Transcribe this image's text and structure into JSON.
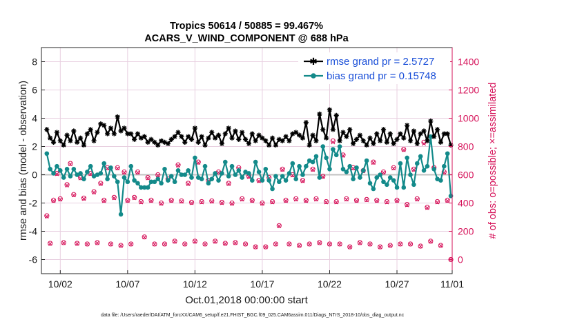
{
  "chart_data": {
    "type": "line",
    "title_line1": "Tropics 50614 / 50885 = 99.467%",
    "title_line2": "ACARS_V_WIND_COMPONENT @ 688 hPa",
    "xlabel": "Oct.01,2018 00:00:00 start",
    "ylabel_left": "rmse and bias (model - observation)",
    "ylabel_right": "# of obs: o=possible; ×=assimilated",
    "footnote": "data file: /Users/raeder/DAI/ATM_forcXX/CAM6_setup/f.e21.FHIST_BGC.f09_025.CAM6assim.011/Diags_NTrS_2018-10/obs_diag_output.nc",
    "xlim": [
      0.6,
      31.1
    ],
    "ylim_left": [
      -7,
      9
    ],
    "ylim_right": [
      -100,
      1500
    ],
    "x_ticks": [
      2,
      7,
      12,
      17,
      22,
      27,
      32
    ],
    "x_tick_labels": [
      "10/02",
      "10/07",
      "10/12",
      "10/17",
      "10/22",
      "10/27",
      "11/01"
    ],
    "y_ticks_left": [
      -6,
      -4,
      -2,
      0,
      2,
      4,
      6,
      8
    ],
    "y_tick_labels_left": [
      "-6",
      "-4",
      "-2",
      "0",
      "2",
      "4",
      "6",
      "8"
    ],
    "y_ticks_right": [
      0,
      200,
      400,
      600,
      800,
      1000,
      1200,
      1400
    ],
    "y_tick_labels_right": [
      "0",
      "200",
      "400",
      "600",
      "800",
      "1000",
      "1200",
      "1400"
    ],
    "legend": [
      {
        "name": "rmse grand pr = 2.5727",
        "color": "#000000"
      },
      {
        "name": "bias grand pr = 0.15748",
        "color": "#138a8a"
      }
    ],
    "colors": {
      "rmse": "#000000",
      "bias": "#138a8a",
      "obs": "#d6135a",
      "zero": "#c0c0c0",
      "grid": "#e8cfe0"
    },
    "series": [
      {
        "name": "rmse",
        "x": [
          1.0,
          1.25,
          1.5,
          1.75,
          2.0,
          2.25,
          2.5,
          2.75,
          3.0,
          3.25,
          3.5,
          3.75,
          4.0,
          4.25,
          4.5,
          4.75,
          5.0,
          5.25,
          5.5,
          5.75,
          6.0,
          6.25,
          6.5,
          6.75,
          7.0,
          7.25,
          7.5,
          7.75,
          8.0,
          8.25,
          8.5,
          8.75,
          9.0,
          9.25,
          9.5,
          9.75,
          10.0,
          10.25,
          10.5,
          10.75,
          11.0,
          11.25,
          11.5,
          11.75,
          12.0,
          12.25,
          12.5,
          12.75,
          13.0,
          13.25,
          13.5,
          13.75,
          14.0,
          14.25,
          14.5,
          14.75,
          15.0,
          15.25,
          15.5,
          15.75,
          16.0,
          16.25,
          16.5,
          16.75,
          17.0,
          17.25,
          17.5,
          17.75,
          18.0,
          18.25,
          18.5,
          18.75,
          19.0,
          19.25,
          19.5,
          19.75,
          20.0,
          20.25,
          20.5,
          20.75,
          21.0,
          21.25,
          21.5,
          21.75,
          22.0,
          22.25,
          22.5,
          22.75,
          23.0,
          23.25,
          23.5,
          23.75,
          24.0,
          24.25,
          24.5,
          24.75,
          25.0,
          25.25,
          25.5,
          25.75,
          26.0,
          26.25,
          26.5,
          26.75,
          27.0,
          27.25,
          27.5,
          27.75,
          28.0,
          28.25,
          28.5,
          28.75,
          29.0,
          29.25,
          29.5,
          29.75,
          30.0,
          30.25,
          30.5,
          30.75,
          31.0
        ],
        "values": [
          3.2,
          2.6,
          2.3,
          3.0,
          2.4,
          2.1,
          2.8,
          2.4,
          3.1,
          2.3,
          2.6,
          2.1,
          2.9,
          3.2,
          2.4,
          3.0,
          3.6,
          3.5,
          2.9,
          3.3,
          2.9,
          4.1,
          3.1,
          3.3,
          2.9,
          2.9,
          2.5,
          2.9,
          2.6,
          2.7,
          2.3,
          2.5,
          2.3,
          2.1,
          2.4,
          2.3,
          2.2,
          2.5,
          2.7,
          3.0,
          2.7,
          2.3,
          2.7,
          2.5,
          3.3,
          2.3,
          2.7,
          2.1,
          2.6,
          3.0,
          2.6,
          2.8,
          2.2,
          2.9,
          3.3,
          2.6,
          3.1,
          2.5,
          3.0,
          2.5,
          2.2,
          2.9,
          2.4,
          2.8,
          2.6,
          2.4,
          2.1,
          2.6,
          2.1,
          2.5,
          2.4,
          2.7,
          2.4,
          2.9,
          3.0,
          2.8,
          2.6,
          3.7,
          2.1,
          2.8,
          2.4,
          4.3,
          3.2,
          2.6,
          4.6,
          3.2,
          4.2,
          2.4,
          3.0,
          2.7,
          3.2,
          2.2,
          2.5,
          2.8,
          2.4,
          2.1,
          2.6,
          2.2,
          2.9,
          2.4,
          3.2,
          2.3,
          2.9,
          2.2,
          2.5,
          2.9,
          2.6,
          3.5,
          2.4,
          3.1,
          2.2,
          2.9,
          3.1,
          2.4,
          3.8,
          2.7,
          3.2,
          2.3,
          2.9,
          2.9,
          2.1
        ]
      },
      {
        "name": "bias",
        "x": [
          1.0,
          1.25,
          1.5,
          1.75,
          2.0,
          2.25,
          2.5,
          2.75,
          3.0,
          3.25,
          3.5,
          3.75,
          4.0,
          4.25,
          4.5,
          4.75,
          5.0,
          5.25,
          5.5,
          5.75,
          6.0,
          6.25,
          6.5,
          6.75,
          7.0,
          7.25,
          7.5,
          7.75,
          8.0,
          8.25,
          8.5,
          8.75,
          9.0,
          9.25,
          9.5,
          9.75,
          10.0,
          10.25,
          10.5,
          10.75,
          11.0,
          11.25,
          11.5,
          11.75,
          12.0,
          12.25,
          12.5,
          12.75,
          13.0,
          13.25,
          13.5,
          13.75,
          14.0,
          14.25,
          14.5,
          14.75,
          15.0,
          15.25,
          15.5,
          15.75,
          16.0,
          16.25,
          16.5,
          16.75,
          17.0,
          17.25,
          17.5,
          17.75,
          18.0,
          18.25,
          18.5,
          18.75,
          19.0,
          19.25,
          19.5,
          19.75,
          20.0,
          20.25,
          20.5,
          20.75,
          21.0,
          21.25,
          21.5,
          21.75,
          22.0,
          22.25,
          22.5,
          22.75,
          23.0,
          23.25,
          23.5,
          23.75,
          24.0,
          24.25,
          24.5,
          24.75,
          25.0,
          25.25,
          25.5,
          25.75,
          26.0,
          26.25,
          26.5,
          26.75,
          27.0,
          27.25,
          27.5,
          27.75,
          28.0,
          28.25,
          28.5,
          28.75,
          29.0,
          29.25,
          29.5,
          29.75,
          30.0,
          30.25,
          30.5,
          30.75,
          31.0
        ],
        "values": [
          1.5,
          0.4,
          0.1,
          0.6,
          0.3,
          -0.2,
          0.4,
          -0.1,
          0.4,
          0.0,
          0.1,
          -0.3,
          0.2,
          0.6,
          -0.1,
          0.0,
          0.1,
          0.8,
          -0.3,
          0.5,
          -0.1,
          -0.5,
          -2.8,
          -0.2,
          -0.5,
          0.6,
          -0.4,
          -0.6,
          -0.9,
          -0.9,
          -0.9,
          -0.5,
          -0.5,
          -0.3,
          -0.6,
          0.4,
          -0.4,
          -0.1,
          -0.5,
          0.3,
          0.0,
          0.0,
          0.3,
          -0.2,
          1.2,
          -0.2,
          -0.3,
          0.6,
          -0.6,
          -0.3,
          0.1,
          -0.4,
          0.1,
          0.9,
          -0.1,
          0.6,
          0.0,
          0.3,
          -0.2,
          0.2,
          0.1,
          -0.4,
          0.9,
          0.2,
          -0.4,
          0.4,
          -0.4,
          -1.0,
          -0.1,
          -0.5,
          -0.1,
          -0.4,
          0.1,
          0.8,
          -0.3,
          0.6,
          0.0,
          0.6,
          1.0,
          0.9,
          1.3,
          -0.2,
          2.0,
          1.2,
          0.4,
          1.8,
          1.4,
          2.0,
          0.4,
          0.2,
          0.6,
          -0.3,
          0.5,
          -0.2,
          0.3,
          1.0,
          -0.6,
          -1.0,
          -0.2,
          0.0,
          -0.5,
          -0.7,
          -0.2,
          -0.4,
          -0.9,
          0.8,
          -0.9,
          1.2,
          0.0,
          -0.7,
          0.8,
          1.3,
          0.3,
          0.6,
          2.7,
          0.4,
          -0.3,
          -0.4,
          0.6,
          1.5,
          -1.5
        ]
      },
      {
        "name": "obs_possible",
        "x": [
          1.0,
          1.25,
          1.5,
          1.75,
          2.0,
          2.25,
          2.5,
          2.75,
          3.0,
          3.25,
          3.5,
          3.75,
          4.0,
          4.25,
          4.5,
          4.75,
          5.0,
          5.25,
          5.5,
          5.75,
          6.0,
          6.25,
          6.5,
          6.75,
          7.0,
          7.25,
          7.5,
          7.75,
          8.0,
          8.25,
          8.5,
          8.75,
          9.0,
          9.25,
          9.5,
          9.75,
          10.0,
          10.25,
          10.5,
          10.75,
          11.0,
          11.25,
          11.5,
          11.75,
          12.0,
          12.25,
          12.5,
          12.75,
          13.0,
          13.25,
          13.5,
          13.75,
          14.0,
          14.25,
          14.5,
          14.75,
          15.0,
          15.25,
          15.5,
          15.75,
          16.0,
          16.25,
          16.5,
          16.75,
          17.0,
          17.25,
          17.5,
          17.75,
          18.0,
          18.25,
          18.5,
          18.75,
          19.0,
          19.25,
          19.5,
          19.75,
          20.0,
          20.25,
          20.5,
          20.75,
          21.0,
          21.25,
          21.5,
          21.75,
          22.0,
          22.25,
          22.5,
          22.75,
          23.0,
          23.25,
          23.5,
          23.75,
          24.0,
          24.25,
          24.5,
          24.75,
          25.0,
          25.25,
          25.5,
          25.75,
          26.0,
          26.25,
          26.5,
          26.75,
          27.0,
          27.25,
          27.5,
          27.75,
          28.0,
          28.25,
          28.5,
          28.75,
          29.0,
          29.25,
          29.5,
          29.75,
          30.0,
          30.25,
          30.5,
          30.75,
          31.0
        ],
        "values": [
          310,
          115,
          420,
          610,
          430,
          120,
          530,
          680,
          460,
          115,
          580,
          435,
          110,
          610,
          480,
          120,
          540,
          420,
          650,
          110,
          440,
          650,
          100,
          620,
          420,
          110,
          440,
          620,
          410,
          160,
          580,
          420,
          110,
          600,
          400,
          110,
          570,
          420,
          130,
          670,
          415,
          110,
          540,
          405,
          130,
          690,
          410,
          110,
          560,
          415,
          130,
          620,
          405,
          115,
          540,
          400,
          120,
          650,
          430,
          110,
          590,
          420,
          90,
          560,
          400,
          90,
          580,
          410,
          110,
          240,
          640,
          420,
          110,
          600,
          430,
          100,
          560,
          420,
          110,
          640,
          430,
          120,
          590,
          410,
          110,
          840,
          410,
          110,
          740,
          430,
          90,
          650,
          420,
          120,
          630,
          425,
          110,
          690,
          420,
          90,
          620,
          410,
          100,
          650,
          420,
          110,
          780,
          390,
          110,
          640,
          430,
          95,
          830,
          370,
          130,
          650,
          410,
          100,
          620,
          420,
          0
        ]
      },
      {
        "name": "obs_assimilated",
        "x": [
          1.0,
          1.25,
          1.5,
          1.75,
          2.0,
          2.25,
          2.5,
          2.75,
          3.0,
          3.25,
          3.5,
          3.75,
          4.0,
          4.25,
          4.5,
          4.75,
          5.0,
          5.25,
          5.5,
          5.75,
          6.0,
          6.25,
          6.5,
          6.75,
          7.0,
          7.25,
          7.5,
          7.75,
          8.0,
          8.25,
          8.5,
          8.75,
          9.0,
          9.25,
          9.5,
          9.75,
          10.0,
          10.25,
          10.5,
          10.75,
          11.0,
          11.25,
          11.5,
          11.75,
          12.0,
          12.25,
          12.5,
          12.75,
          13.0,
          13.25,
          13.5,
          13.75,
          14.0,
          14.25,
          14.5,
          14.75,
          15.0,
          15.25,
          15.5,
          15.75,
          16.0,
          16.25,
          16.5,
          16.75,
          17.0,
          17.25,
          17.5,
          17.75,
          18.0,
          18.25,
          18.5,
          18.75,
          19.0,
          19.25,
          19.5,
          19.75,
          20.0,
          20.25,
          20.5,
          20.75,
          21.0,
          21.25,
          21.5,
          21.75,
          22.0,
          22.25,
          22.5,
          22.75,
          23.0,
          23.25,
          23.5,
          23.75,
          24.0,
          24.25,
          24.5,
          24.75,
          25.0,
          25.25,
          25.5,
          25.75,
          26.0,
          26.25,
          26.5,
          26.75,
          27.0,
          27.25,
          27.5,
          27.75,
          28.0,
          28.25,
          28.5,
          28.75,
          29.0,
          29.25,
          29.5,
          29.75,
          30.0,
          30.25,
          30.5,
          30.75,
          31.0
        ],
        "values": [
          305,
          112,
          415,
          605,
          425,
          117,
          525,
          675,
          455,
          112,
          575,
          430,
          108,
          605,
          475,
          117,
          535,
          415,
          645,
          108,
          435,
          645,
          98,
          615,
          415,
          108,
          435,
          615,
          405,
          157,
          575,
          415,
          108,
          595,
          395,
          108,
          565,
          415,
          127,
          665,
          410,
          108,
          535,
          400,
          127,
          685,
          405,
          108,
          555,
          410,
          127,
          615,
          400,
          112,
          535,
          395,
          117,
          645,
          425,
          108,
          585,
          415,
          88,
          555,
          395,
          88,
          575,
          405,
          108,
          237,
          635,
          415,
          108,
          595,
          425,
          98,
          555,
          415,
          108,
          635,
          425,
          117,
          585,
          405,
          108,
          830,
          405,
          108,
          735,
          425,
          88,
          645,
          415,
          117,
          625,
          420,
          108,
          685,
          415,
          88,
          615,
          405,
          98,
          645,
          415,
          108,
          775,
          385,
          108,
          635,
          425,
          93,
          820,
          365,
          127,
          645,
          405,
          98,
          615,
          415,
          0
        ]
      }
    ]
  }
}
